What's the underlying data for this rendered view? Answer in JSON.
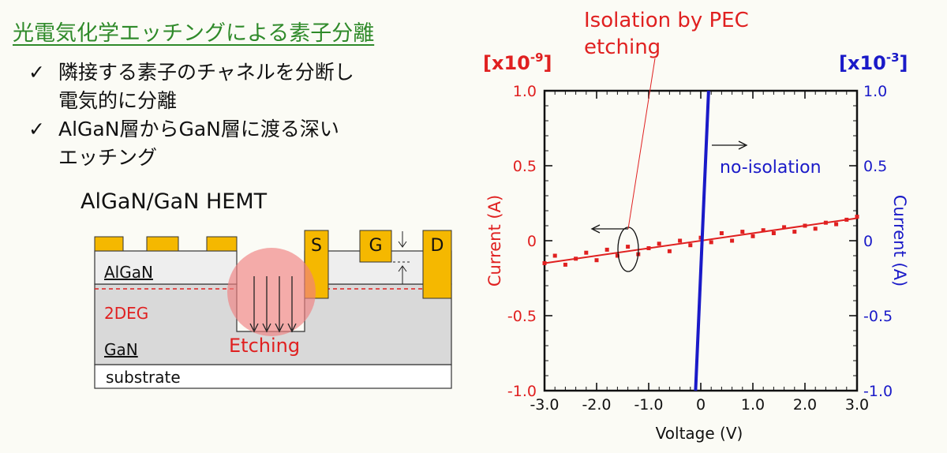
{
  "slide": {
    "title": "光電気化学エッチングによる素子分離",
    "bullets": [
      {
        "mark": "✓",
        "lines": [
          "隣接する素子のチャネルを分断し",
          "電気的に分離"
        ]
      },
      {
        "mark": "✓",
        "lines": [
          "AlGaN層からGaN層に渡る深い",
          "エッチング"
        ]
      }
    ]
  },
  "diagram": {
    "title": "AlGaN/GaN HEMT",
    "layers": {
      "algan": "AlGaN",
      "twodeg": "2DEG",
      "gan": "GaN",
      "substrate": "substrate"
    },
    "contacts": {
      "source": "S",
      "gate": "G",
      "drain": "D"
    },
    "etching_label": "Etching",
    "colors": {
      "contact": "#f5b800",
      "etch": "#f08080",
      "twodeg": "#e02020",
      "layer": "#d9d9d9"
    }
  },
  "chart_data": {
    "type": "line",
    "annotation": [
      "Isolation by PEC",
      "etching"
    ],
    "annotation_no_isolation": "no-isolation",
    "xlabel": "Voltage (V)",
    "ylabel_left": "Current (A)",
    "ylabel_right": "Current (A)",
    "left_multiplier": {
      "base": "[x10",
      "exp": "-9",
      "close": "]"
    },
    "right_multiplier": {
      "base": "[x10",
      "exp": "-3",
      "close": "]"
    },
    "x_ticks": [
      "-3.0",
      "-2.0",
      "-1.0",
      "0",
      "1.0",
      "2.0",
      "3.0"
    ],
    "x_tick_values": [
      -3,
      -2,
      -1,
      0,
      1,
      2,
      3
    ],
    "y_ticks_left": [
      "1.0",
      "0.5",
      "0",
      "-0.5",
      "-1.0"
    ],
    "y_ticks_right": [
      "1.0",
      "0.5",
      "0",
      "-0.5",
      "-1.0"
    ],
    "y_tick_values": [
      1.0,
      0.5,
      0,
      -0.5,
      -1.0
    ],
    "xlim": [
      -3.0,
      3.0
    ],
    "ylim_left": [
      -1.0,
      1.0
    ],
    "ylim_right": [
      -1.0,
      1.0
    ],
    "colors": {
      "left": "#e02020",
      "right": "#1a1ac8"
    },
    "series": [
      {
        "axis": "left",
        "style": "scatter",
        "color": "#e02020",
        "x": [
          -3.0,
          -2.8,
          -2.6,
          -2.4,
          -2.2,
          -2.0,
          -1.8,
          -1.6,
          -1.4,
          -1.2,
          -1.0,
          -0.8,
          -0.6,
          -0.4,
          -0.2,
          0.0,
          0.2,
          0.4,
          0.6,
          0.8,
          1.0,
          1.2,
          1.4,
          1.6,
          1.8,
          2.0,
          2.2,
          2.4,
          2.6,
          2.8,
          3.0
        ],
        "y": [
          -0.15,
          -0.1,
          -0.16,
          -0.12,
          -0.08,
          -0.13,
          -0.06,
          -0.1,
          -0.04,
          -0.09,
          -0.05,
          -0.02,
          -0.07,
          0.0,
          -0.03,
          0.02,
          -0.01,
          0.05,
          0.0,
          0.06,
          0.03,
          0.07,
          0.05,
          0.09,
          0.06,
          0.1,
          0.08,
          0.12,
          0.11,
          0.14,
          0.16
        ]
      },
      {
        "axis": "left",
        "style": "line",
        "color": "#e02020",
        "x": [
          -3.0,
          3.0
        ],
        "y": [
          -0.15,
          0.15
        ]
      },
      {
        "axis": "right",
        "style": "line",
        "color": "#1a1ac8",
        "x": [
          -0.1,
          0.15
        ],
        "y": [
          -1.0,
          1.0
        ]
      }
    ]
  }
}
